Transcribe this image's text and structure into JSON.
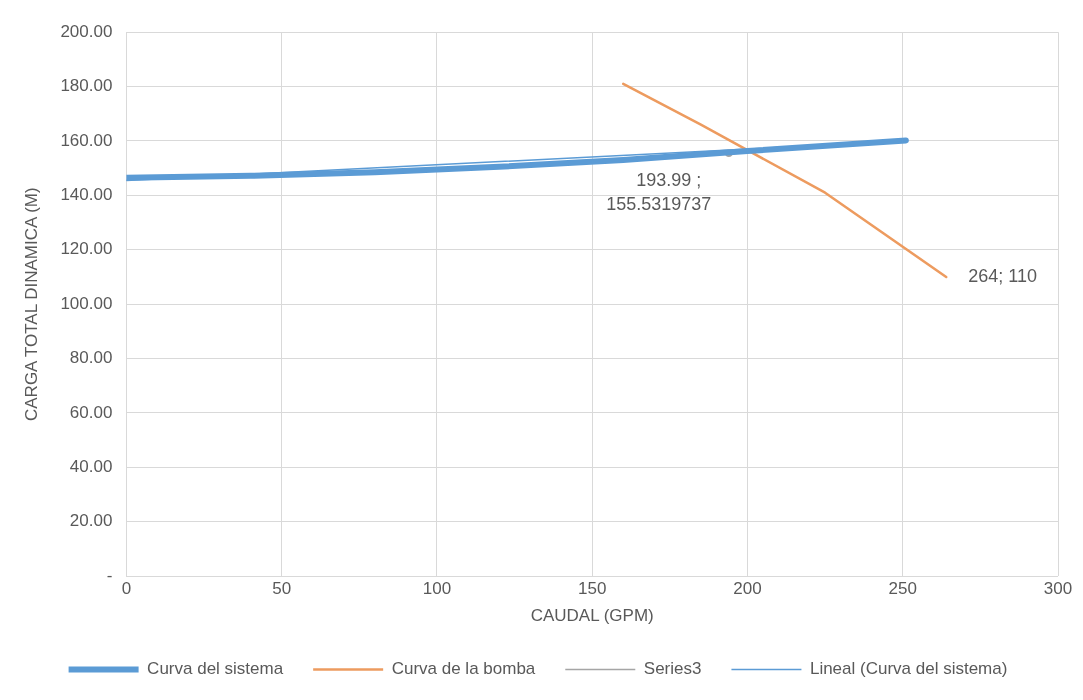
{
  "chart_data": {
    "type": "line",
    "xlabel": "CAUDAL (GPM)",
    "ylabel": "CARGA TOTAL DINAMICA (M)",
    "xlim": [
      0,
      300
    ],
    "xticks": [
      0,
      50,
      100,
      150,
      200,
      250,
      300
    ],
    "ylim": [
      0,
      200
    ],
    "yticks": [
      {
        "value": 0,
        "label": "-"
      },
      {
        "value": 20,
        "label": "20.00"
      },
      {
        "value": 40,
        "label": "40.00"
      },
      {
        "value": 60,
        "label": "60.00"
      },
      {
        "value": 80,
        "label": "80.00"
      },
      {
        "value": 100,
        "label": "100.00"
      },
      {
        "value": 120,
        "label": "120.00"
      },
      {
        "value": 140,
        "label": "140.00"
      },
      {
        "value": 160,
        "label": "160.00"
      },
      {
        "value": 180,
        "label": "180.00"
      },
      {
        "value": 200,
        "label": "200.00"
      }
    ],
    "grid": true,
    "legend": "bottom",
    "marker": "none",
    "series": [
      {
        "name": "Curva del sistema",
        "color": "#5b9bd5",
        "x": [
          0,
          40,
          80,
          120,
          160,
          200,
          251
        ],
        "values": [
          146.5,
          147.2,
          148.5,
          150.5,
          153,
          156.3,
          160.2
        ]
      },
      {
        "name": "Curva de la bomba",
        "color": "#ed9b5f",
        "x": [
          160,
          185,
          225,
          264
        ],
        "values": [
          181,
          166,
          141,
          110
        ],
        "value_labels": [
          null,
          null,
          null,
          "264; 110"
        ]
      },
      {
        "name": "Series3",
        "color": "#a5a5a5",
        "line_style": "dotted",
        "marker": "circle",
        "x": [
          193.99
        ],
        "values": [
          155.5319737
        ],
        "value_labels": [
          "193.99 ; 155.5319737"
        ]
      },
      {
        "name": "Lineal (Curva del sistema)",
        "type": "line",
        "color": "#5b9bd5",
        "x": [
          0,
          251
        ],
        "values": [
          145.5,
          160
        ]
      }
    ]
  }
}
